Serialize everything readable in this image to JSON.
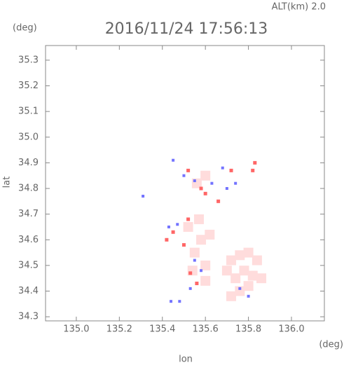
{
  "chart_data": {
    "type": "scatter",
    "title": "2016/11/24 17:56:13",
    "subtitle": "ALT(km) 2.0",
    "y_unit": "(deg)",
    "x_unit": "(deg)",
    "ylabel": "lat",
    "xlabel": "lon",
    "xlim": [
      134.857,
      136.153
    ],
    "ylim": [
      34.284,
      35.357
    ],
    "xticks": [
      {
        "value": 135,
        "label": "135.0"
      },
      135.2,
      135.4,
      135.6,
      135.8,
      {
        "value": 136,
        "label": "136.0"
      }
    ],
    "yticks": [
      34.3,
      34.4,
      34.5,
      34.6,
      34.7,
      34.8,
      34.9,
      {
        "value": 35,
        "label": "35.0"
      },
      35.1,
      35.2,
      35.3
    ],
    "series": [
      {
        "color": "#ffdcdc",
        "size": 14,
        "x": [
          135.72,
          135.76,
          135.8,
          135.84,
          135.78,
          135.82,
          135.74,
          135.7,
          135.76,
          135.8,
          135.72,
          135.86,
          135.58,
          135.55,
          135.6,
          135.52,
          135.57,
          135.62,
          135.54,
          135.6,
          135.56,
          135.6
        ],
        "y": [
          34.52,
          34.54,
          34.55,
          34.52,
          34.48,
          34.46,
          34.45,
          34.48,
          34.4,
          34.42,
          34.38,
          34.45,
          34.6,
          34.55,
          34.5,
          34.65,
          34.68,
          34.62,
          34.48,
          34.44,
          34.82,
          34.85
        ]
      },
      {
        "color": "#ff6666",
        "size": 5,
        "x": [
          135.52,
          135.58,
          135.72,
          135.83,
          135.82,
          135.52,
          135.45,
          135.5,
          135.42,
          135.53,
          135.56,
          135.66,
          135.6
        ],
        "y": [
          34.87,
          34.8,
          34.87,
          34.9,
          34.87,
          34.68,
          34.63,
          34.58,
          34.6,
          34.47,
          34.43,
          34.75,
          34.78
        ]
      },
      {
        "color": "#7373ff",
        "size": 4,
        "x": [
          135.5,
          135.55,
          135.63,
          135.7,
          135.74,
          135.47,
          135.43,
          135.55,
          135.58,
          135.53,
          135.44,
          135.48,
          135.76,
          135.8,
          135.31,
          135.45,
          135.68
        ],
        "y": [
          34.85,
          34.83,
          34.82,
          34.8,
          34.82,
          34.66,
          34.65,
          34.52,
          34.48,
          34.41,
          34.36,
          34.36,
          34.41,
          34.38,
          34.77,
          34.91,
          34.88
        ]
      }
    ]
  }
}
